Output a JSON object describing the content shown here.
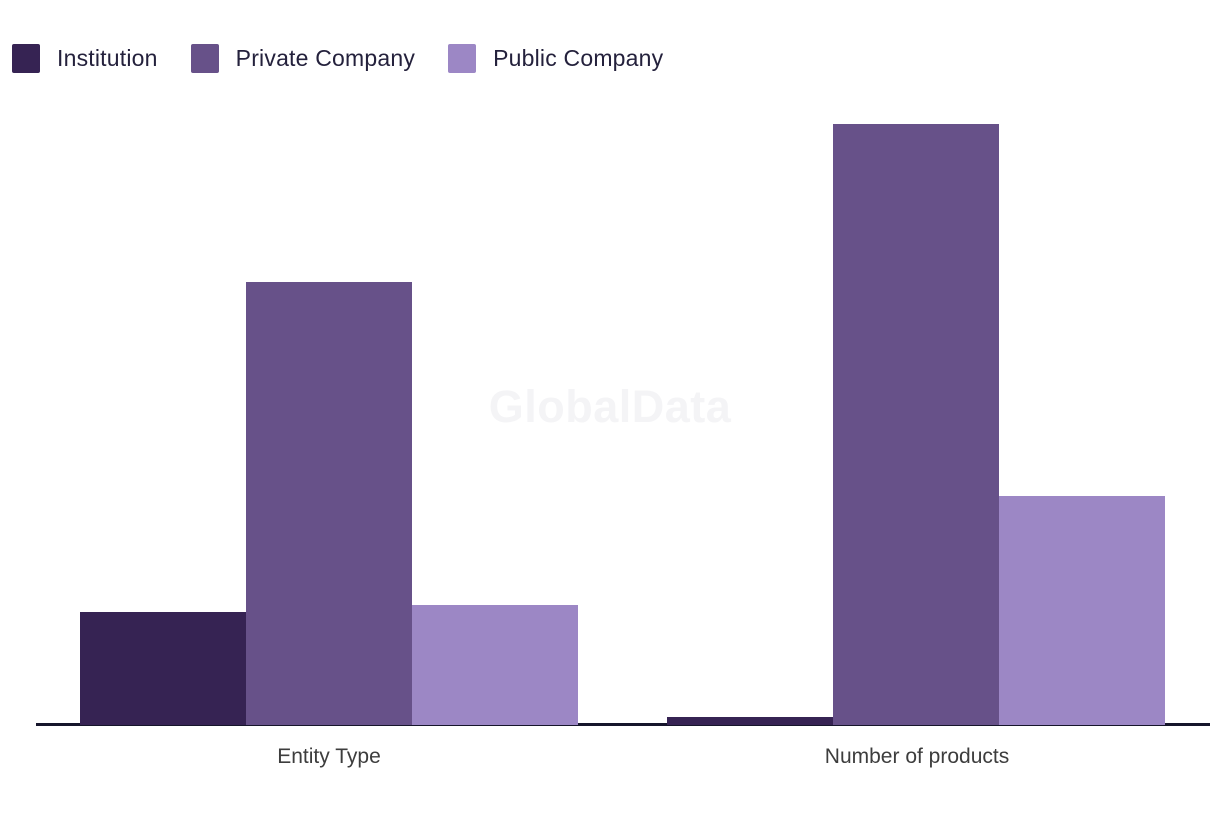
{
  "page": {
    "background": "#ffffff"
  },
  "chart_data": {
    "type": "bar",
    "categories": [
      "Entity Type",
      "Number of products"
    ],
    "series": [
      {
        "name": "Institution",
        "color": "#362353",
        "values": [
          113,
          8
        ]
      },
      {
        "name": "Private Company",
        "color": "#675189",
        "values": [
          443,
          601
        ]
      },
      {
        "name": "Public Company",
        "color": "#9C87C5",
        "values": [
          120,
          229
        ]
      }
    ],
    "title": "",
    "xlabel": "",
    "ylabel": "",
    "ylim": [
      0,
      640
    ],
    "grid": false,
    "legend_position": "top-left",
    "watermark": "GlobalData",
    "axis_color": "#16152B",
    "label_color": "#3D3D3D",
    "legend_text_color": "#24213C",
    "note": "No y-axis shown; values are proportional bar heights measured in pixels (baseline to bar top)"
  }
}
